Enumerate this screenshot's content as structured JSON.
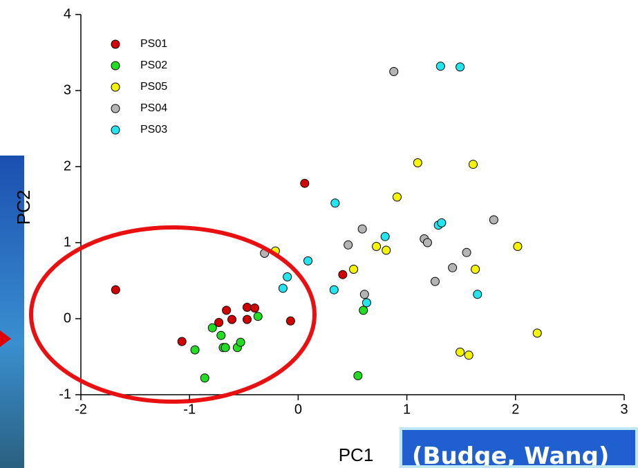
{
  "chart_data": {
    "type": "scatter",
    "x_label": "PC1",
    "y_label": "PC2",
    "xlim": [
      -2,
      3
    ],
    "xticks": [
      -2,
      -1,
      0,
      1,
      2,
      3
    ],
    "ylim": [
      -1,
      4
    ],
    "yticks": [
      -1,
      0,
      1,
      2,
      3,
      4
    ],
    "legend": "upper left",
    "annotation": "(Budge, Wang)",
    "series": [
      {
        "name": "PS01",
        "color": "#d00000",
        "x": [
          -1.68,
          0.06,
          -1.07,
          -0.73,
          -0.66,
          -0.61,
          -0.47,
          -0.4,
          -0.47,
          -0.07,
          0.41
        ],
        "values": [
          0.38,
          1.78,
          -0.3,
          -0.05,
          0.11,
          -0.01,
          0.15,
          0.14,
          -0.01,
          -0.03,
          0.58
        ]
      },
      {
        "name": "PS02",
        "color": "#22dd22",
        "x": [
          -0.95,
          -0.86,
          -0.79,
          -0.71,
          -0.69,
          -0.67,
          -0.56,
          -0.53,
          -0.37,
          0.6,
          0.55
        ],
        "values": [
          -0.41,
          -0.78,
          -0.12,
          -0.22,
          -0.38,
          -0.38,
          -0.38,
          -0.31,
          0.03,
          0.11,
          -0.75
        ]
      },
      {
        "name": "PS05",
        "color": "#f5f500",
        "x": [
          -0.21,
          0.51,
          0.72,
          0.81,
          0.91,
          1.1,
          1.61,
          2.02,
          1.63,
          1.49,
          1.57,
          2.2
        ],
        "values": [
          0.89,
          0.65,
          0.95,
          0.9,
          1.6,
          2.05,
          2.03,
          0.95,
          0.65,
          -0.44,
          -0.48,
          -0.19
        ]
      },
      {
        "name": "PS04",
        "color": "#b4b4b4",
        "x": [
          0.88,
          -0.31,
          0.46,
          0.59,
          0.61,
          1.16,
          1.19,
          1.26,
          1.42,
          1.55,
          1.8
        ],
        "values": [
          3.25,
          0.86,
          0.97,
          1.18,
          0.32,
          1.05,
          1.0,
          0.49,
          0.67,
          0.87,
          1.3
        ]
      },
      {
        "name": "PS03",
        "color": "#22e5ee",
        "x": [
          1.31,
          1.49,
          0.34,
          0.8,
          1.29,
          1.32,
          0.09,
          -0.1,
          -0.14,
          0.33,
          0.63,
          1.65
        ],
        "values": [
          3.32,
          3.31,
          1.52,
          1.08,
          1.23,
          1.26,
          0.76,
          0.55,
          0.4,
          0.38,
          0.21,
          0.32
        ]
      }
    ]
  }
}
